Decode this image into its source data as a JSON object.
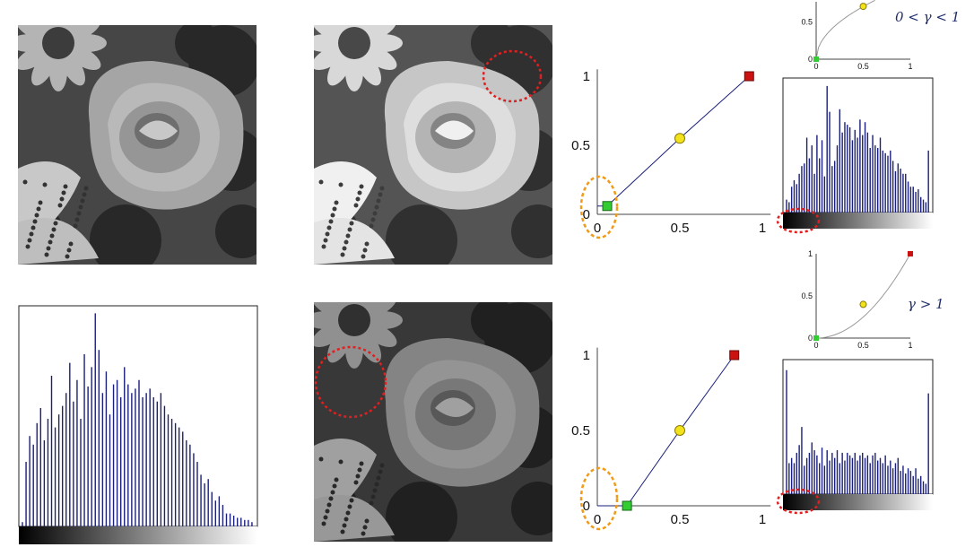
{
  "colors": {
    "series": "#1a1f7a",
    "curve": "#999999",
    "start_marker": "#33cc33",
    "mid_marker": "#f2e21b",
    "end_marker": "#cc1111",
    "highlight_red": "#e02020",
    "highlight_orange": "#f09a1a"
  },
  "icons": [
    "rose-photo",
    "dotted-circle-highlight",
    "dotted-ellipse-highlight",
    "square-marker",
    "circle-marker"
  ],
  "photos": [
    {
      "name": "original",
      "brightness": 1.0
    },
    {
      "name": "gamma-less-than-one",
      "brightness": 1.2
    },
    {
      "name": "gamma-greater-than-one",
      "brightness": 0.8
    }
  ],
  "hist_original": {
    "values": [
      0.02,
      0.3,
      0.42,
      0.38,
      0.48,
      0.55,
      0.4,
      0.5,
      0.7,
      0.46,
      0.52,
      0.56,
      0.62,
      0.76,
      0.58,
      0.68,
      0.5,
      0.8,
      0.65,
      0.74,
      0.99,
      0.82,
      0.62,
      0.72,
      0.52,
      0.66,
      0.68,
      0.6,
      0.74,
      0.66,
      0.62,
      0.64,
      0.68,
      0.6,
      0.62,
      0.64,
      0.6,
      0.58,
      0.62,
      0.56,
      0.52,
      0.5,
      0.48,
      0.46,
      0.44,
      0.4,
      0.38,
      0.34,
      0.3,
      0.24,
      0.2,
      0.22,
      0.16,
      0.12,
      0.14,
      0.1,
      0.06,
      0.06,
      0.05,
      0.04,
      0.04,
      0.03,
      0.03,
      0.02
    ]
  },
  "hist_gamma_lt1": {
    "values": [
      0.1,
      0.08,
      0.2,
      0.25,
      0.22,
      0.3,
      0.36,
      0.38,
      0.58,
      0.42,
      0.52,
      0.3,
      0.6,
      0.42,
      0.56,
      0.28,
      0.98,
      0.78,
      0.36,
      0.4,
      0.52,
      0.8,
      0.62,
      0.7,
      0.68,
      0.66,
      0.56,
      0.64,
      0.58,
      0.72,
      0.6,
      0.7,
      0.62,
      0.5,
      0.6,
      0.52,
      0.5,
      0.58,
      0.48,
      0.46,
      0.44,
      0.48,
      0.4,
      0.32,
      0.38,
      0.34,
      0.3,
      0.3,
      0.24,
      0.2,
      0.2,
      0.16,
      0.18,
      0.12,
      0.1,
      0.08,
      0.48
    ]
  },
  "hist_gamma_gt1": {
    "values": [
      0.96,
      0.24,
      0.28,
      0.24,
      0.32,
      0.38,
      0.52,
      0.22,
      0.28,
      0.32,
      0.4,
      0.34,
      0.3,
      0.24,
      0.36,
      0.22,
      0.34,
      0.26,
      0.32,
      0.28,
      0.34,
      0.24,
      0.32,
      0.26,
      0.32,
      0.3,
      0.28,
      0.32,
      0.26,
      0.3,
      0.32,
      0.28,
      0.3,
      0.24,
      0.3,
      0.32,
      0.26,
      0.28,
      0.24,
      0.3,
      0.22,
      0.26,
      0.2,
      0.24,
      0.28,
      0.18,
      0.22,
      0.16,
      0.2,
      0.18,
      0.14,
      0.2,
      0.12,
      0.14,
      0.1,
      0.08,
      0.78
    ]
  },
  "mapping_top": {
    "ticks_x": [
      "0",
      "0.5",
      "1"
    ],
    "ticks_y": [
      "0",
      "0.5",
      "1"
    ],
    "points": [
      [
        0.06,
        0.06
      ],
      [
        0.5,
        0.55
      ],
      [
        0.92,
        1.0
      ]
    ]
  },
  "mapping_bottom": {
    "ticks_x": [
      "0",
      "0.5",
      "1"
    ],
    "ticks_y": [
      "0",
      "0.5",
      "1"
    ],
    "points": [
      [
        0.18,
        0.0
      ],
      [
        0.5,
        0.5
      ],
      [
        0.83,
        1.0
      ]
    ]
  },
  "curve_top": {
    "ticks_x": [
      "0",
      "0.5",
      "1"
    ],
    "ticks_y": [
      "0",
      "0.5"
    ],
    "gamma": 0.5,
    "points": [
      [
        0.0,
        0.0
      ],
      [
        0.5,
        0.71
      ]
    ]
  },
  "curve_bottom": {
    "ticks_x": [
      "0",
      "0.5",
      "1"
    ],
    "ticks_y": [
      "0",
      "0.5",
      "1"
    ],
    "gamma": 2.0,
    "points": [
      [
        0.0,
        0.0
      ],
      [
        0.5,
        0.4
      ],
      [
        1.0,
        1.0
      ]
    ]
  },
  "labels": {
    "gamma_lt1": "0 < γ < 1",
    "gamma_gt1": "γ > 1"
  }
}
